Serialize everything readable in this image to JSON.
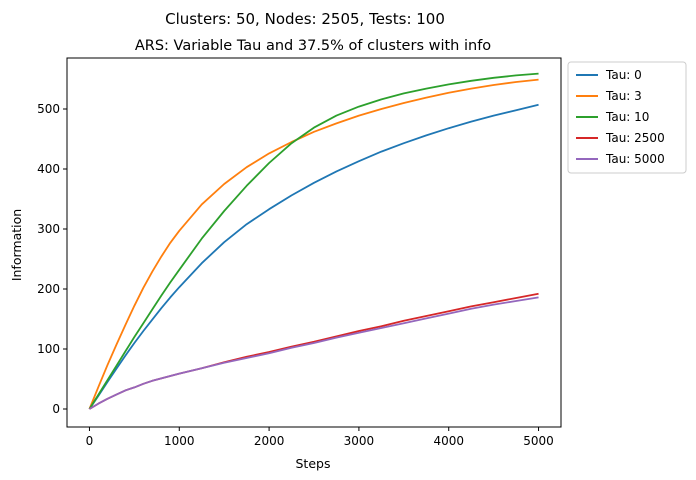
{
  "chart_data": {
    "type": "line",
    "suptitle": "Clusters: 50, Nodes: 2505, Tests: 100",
    "title": "ARS: Variable Tau and 37.5% of clusters with info",
    "xlabel": "Steps",
    "ylabel": "Information",
    "xlim": [
      -250,
      5250
    ],
    "ylim": [
      -30,
      585
    ],
    "xticks": [
      0,
      1000,
      2000,
      3000,
      4000,
      5000
    ],
    "yticks": [
      0,
      100,
      200,
      300,
      400,
      500
    ],
    "grid": false,
    "legend_placement": "outside-upper-right",
    "x": [
      0,
      100,
      200,
      300,
      400,
      500,
      600,
      700,
      800,
      900,
      1000,
      1250,
      1500,
      1750,
      2000,
      2250,
      2500,
      2750,
      3000,
      3250,
      3500,
      3750,
      4000,
      4250,
      4500,
      4750,
      5000
    ],
    "series": [
      {
        "name": "Tau: 0",
        "color": "#1f77b4",
        "values": [
          0,
          22,
          45,
          67,
          89,
          110,
          130,
          149,
          168,
          186,
          203,
          243,
          278,
          308,
          333,
          356,
          377,
          396,
          413,
          429,
          443,
          456,
          468,
          479,
          489,
          498,
          507
        ]
      },
      {
        "name": "Tau: 3",
        "color": "#ff7f0e",
        "values": [
          0,
          37,
          73,
          107,
          140,
          172,
          202,
          229,
          254,
          277,
          297,
          341,
          375,
          403,
          426,
          445,
          462,
          476,
          489,
          500,
          510,
          519,
          527,
          534,
          540,
          545,
          549
        ]
      },
      {
        "name": "Tau: 10",
        "color": "#2ca02c",
        "values": [
          0,
          24,
          48,
          72,
          96,
          120,
          143,
          166,
          189,
          211,
          232,
          284,
          330,
          372,
          410,
          443,
          469,
          489,
          504,
          516,
          526,
          534,
          541,
          547,
          552,
          556,
          559
        ]
      },
      {
        "name": "Tau: 2500",
        "color": "#d62728",
        "values": [
          0,
          9,
          17,
          24,
          31,
          36,
          42,
          47,
          51,
          55,
          59,
          68,
          78,
          87,
          95,
          104,
          112,
          121,
          130,
          138,
          147,
          155,
          163,
          171,
          178,
          185,
          192
        ]
      },
      {
        "name": "Tau: 5000",
        "color": "#9467bd",
        "values": [
          0,
          9,
          17,
          24,
          31,
          36,
          42,
          47,
          51,
          55,
          59,
          68,
          77,
          85,
          93,
          102,
          110,
          119,
          127,
          135,
          143,
          151,
          159,
          167,
          174,
          180,
          186
        ]
      }
    ]
  }
}
